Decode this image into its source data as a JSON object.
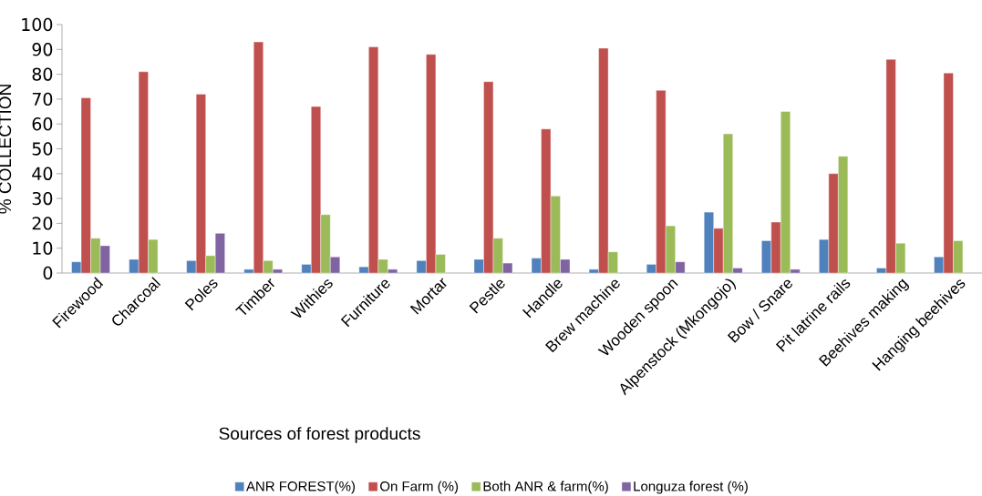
{
  "chart_data": {
    "type": "bar",
    "xlabel": "Sources of forest products",
    "ylabel": "% COLLECTION",
    "categories": [
      "Firewood",
      "Charcoal",
      "Poles",
      "Timber",
      "Withies",
      "Furniture",
      "Mortar",
      "Pestle",
      "Handle",
      "Brew machine",
      "Wooden spoon",
      "Alpenstock (Mkongojo)",
      "Bow / Snare",
      "Pit latrine rails",
      "Beehives making",
      "Hanging beehives"
    ],
    "series": [
      {
        "name": "ANR FOREST(%)",
        "color": "#4f81bd",
        "values": [
          4.5,
          5.5,
          5,
          1.5,
          3.5,
          2.5,
          5,
          5.5,
          6,
          1.5,
          3.5,
          24.5,
          13,
          13.5,
          2,
          6.5
        ]
      },
      {
        "name": "On Farm (%)",
        "color": "#c0504d",
        "values": [
          70.5,
          81,
          72,
          93,
          67,
          91,
          88,
          77,
          58,
          90.5,
          73.5,
          18,
          20.5,
          40,
          86,
          80.5
        ]
      },
      {
        "name": "Both ANR & farm(%)",
        "color": "#9bbb59",
        "values": [
          14,
          13.5,
          7,
          5,
          23.5,
          5.5,
          7.5,
          14,
          31,
          8.5,
          19,
          56,
          65,
          47,
          12,
          13
        ]
      },
      {
        "name": "Longuza forest (%)",
        "color": "#8064a2",
        "values": [
          11,
          null,
          16,
          1.5,
          6.5,
          1.5,
          null,
          4,
          5.5,
          null,
          4.5,
          2,
          1.5,
          null,
          null,
          null
        ]
      }
    ],
    "ylim": [
      0,
      100
    ],
    "yticks": [
      0,
      10,
      20,
      30,
      40,
      50,
      60,
      70,
      80,
      90,
      100
    ],
    "legend": "bottom"
  }
}
